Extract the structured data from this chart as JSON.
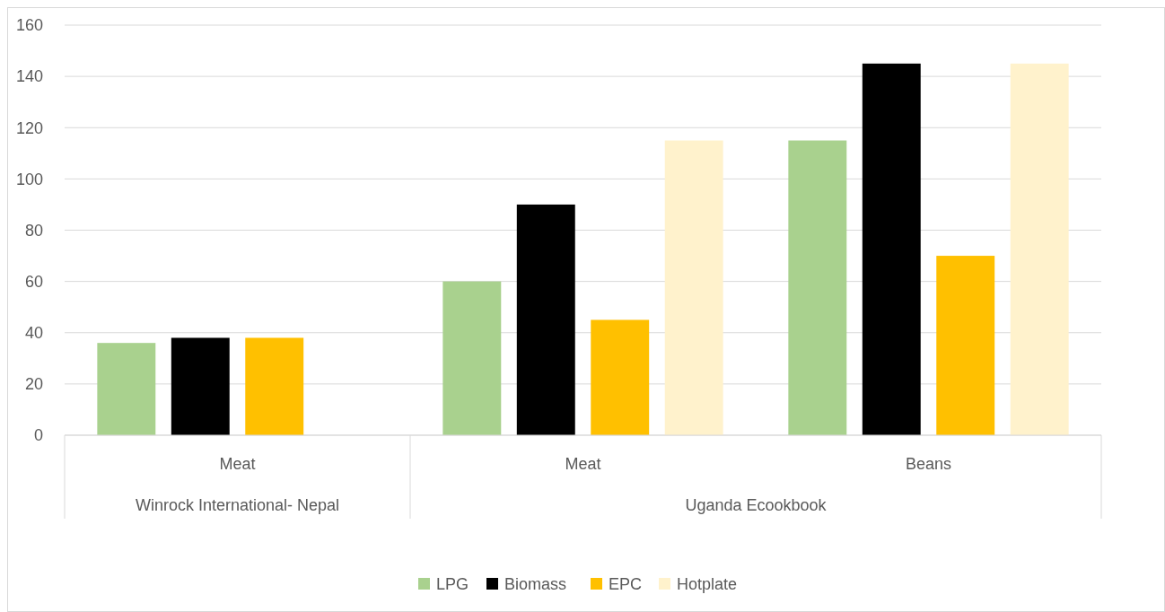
{
  "chart_data": {
    "type": "bar",
    "categories": [
      "Meat",
      "Meat",
      "Beans"
    ],
    "series": [
      {
        "name": "LPG",
        "color": "#a9d18e",
        "values": [
          36,
          60,
          115
        ]
      },
      {
        "name": "Biomass",
        "color": "#000000",
        "values": [
          38,
          90,
          145
        ]
      },
      {
        "name": "EPC",
        "color": "#ffc000",
        "values": [
          38,
          45,
          70
        ]
      },
      {
        "name": "Hotplate",
        "color": "#fff2cc",
        "values": [
          null,
          115,
          145
        ]
      }
    ],
    "annotations": [
      "Winrock International- Nepal",
      "Uganda Ecookbook"
    ],
    "ylim": [
      0,
      160
    ],
    "yticks": [
      0,
      20,
      40,
      60,
      80,
      100,
      120,
      140,
      160
    ],
    "grid": "y",
    "legend": "bottom"
  }
}
